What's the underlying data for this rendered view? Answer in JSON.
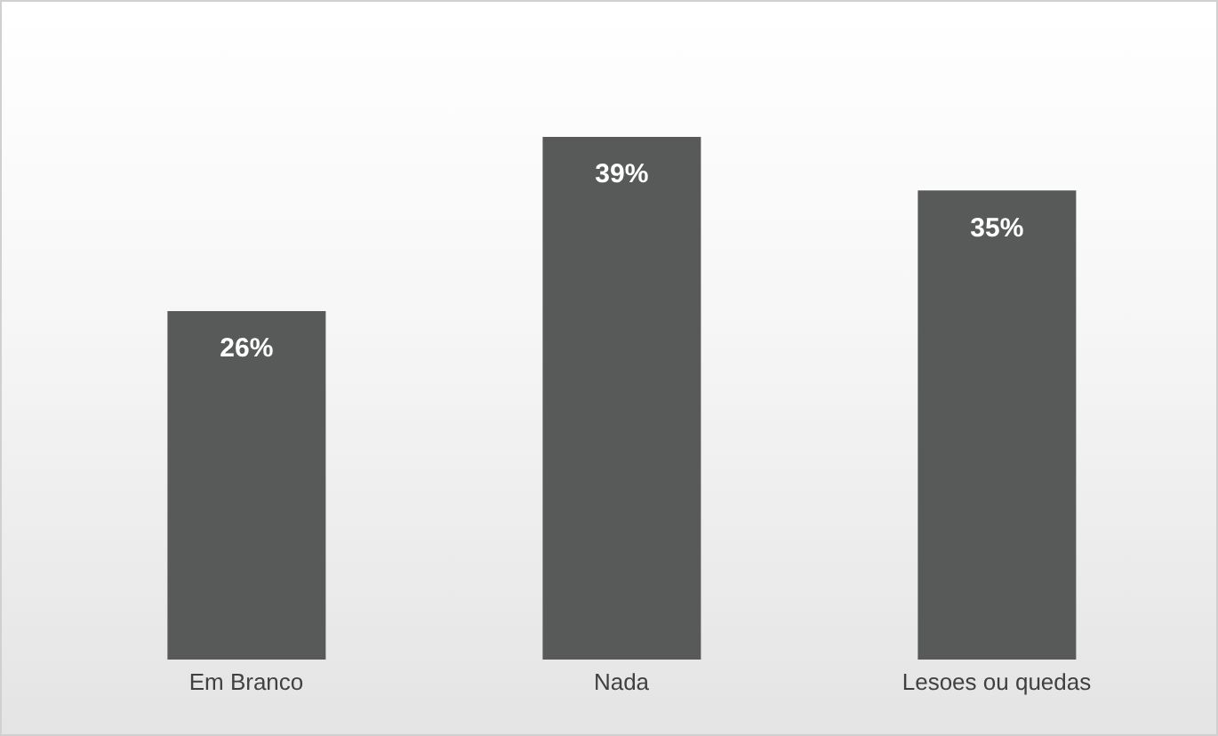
{
  "chart_data": {
    "type": "bar",
    "categories": [
      "Em Branco",
      "Nada",
      "Lesoes ou quedas"
    ],
    "values": [
      26,
      39,
      35
    ],
    "color": "#585a5a",
    "value_labels": [
      "26%",
      "39%",
      "35%"
    ],
    "grid": false,
    "legend": false
  }
}
